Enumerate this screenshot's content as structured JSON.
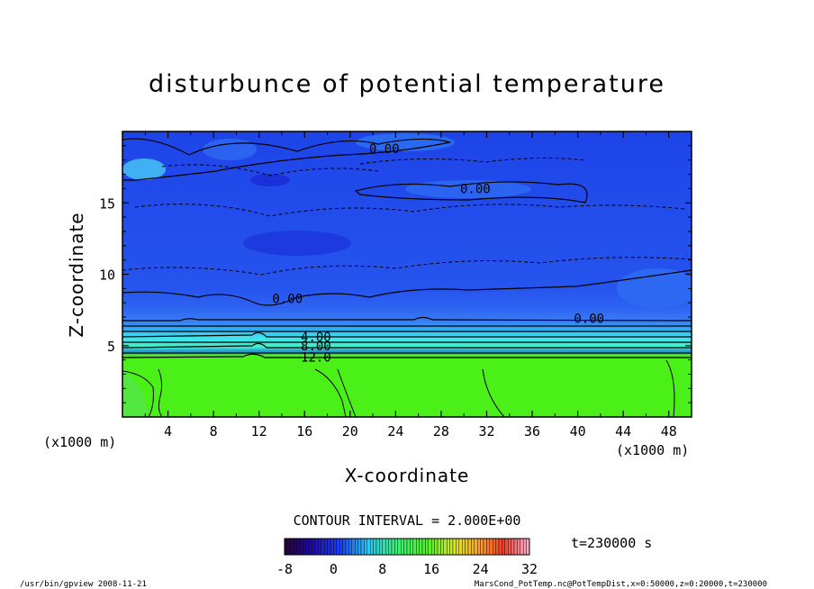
{
  "chart_data": {
    "type": "heatmap",
    "title": "disturbunce of potential temperature",
    "xlabel": "X-coordinate",
    "ylabel": "Z-coordinate",
    "x_unit": "(x1000 m)",
    "y_unit": "(x1000 m)",
    "xlim": [
      0,
      50
    ],
    "ylim": [
      0,
      20
    ],
    "xticks": [
      "4",
      "8",
      "12",
      "16",
      "20",
      "24",
      "28",
      "32",
      "36",
      "40",
      "44",
      "48"
    ],
    "yticks": [
      "5",
      "10",
      "15"
    ],
    "contour_interval_text": "CONTOUR INTERVAL = 2.000E+00",
    "contour_labels": [
      {
        "text": "0.00",
        "x": 23,
        "z": 18.8
      },
      {
        "text": "0.00",
        "x": 31,
        "z": 16.0
      },
      {
        "text": "0.00",
        "x": 14.5,
        "z": 8.3
      },
      {
        "text": "0.00",
        "x": 41,
        "z": 6.9
      },
      {
        "text": "4.00",
        "x": 17,
        "z": 5.6
      },
      {
        "text": "8.00",
        "x": 17,
        "z": 5.0
      },
      {
        "text": "12.0",
        "x": 17,
        "z": 4.2
      }
    ],
    "field_summary": [
      {
        "z_range": [
          0,
          4.3
        ],
        "value": 14
      },
      {
        "z_range": [
          4.3,
          6.9
        ],
        "value_range": [
          12,
          0
        ]
      },
      {
        "z_range": [
          6.9,
          20
        ],
        "value_range": [
          -3,
          0
        ]
      }
    ],
    "colorbar": {
      "min": -8,
      "max": 32,
      "tick_labels": [
        "-8",
        "0",
        "8",
        "16",
        "24",
        "32"
      ],
      "colormap": "rainbow"
    },
    "time_label": "t=230000 s"
  },
  "footer": {
    "left": "/usr/bin/gpview   2008-11-21",
    "right": "MarsCond_PotTemp.nc@PotTempDist,x=0:50000,z=0:20000,t=230000"
  },
  "colors": {
    "upper_blue": "#2a5cf0",
    "transition_cyan": "#40e8f0",
    "lower_green": "#4af018"
  }
}
